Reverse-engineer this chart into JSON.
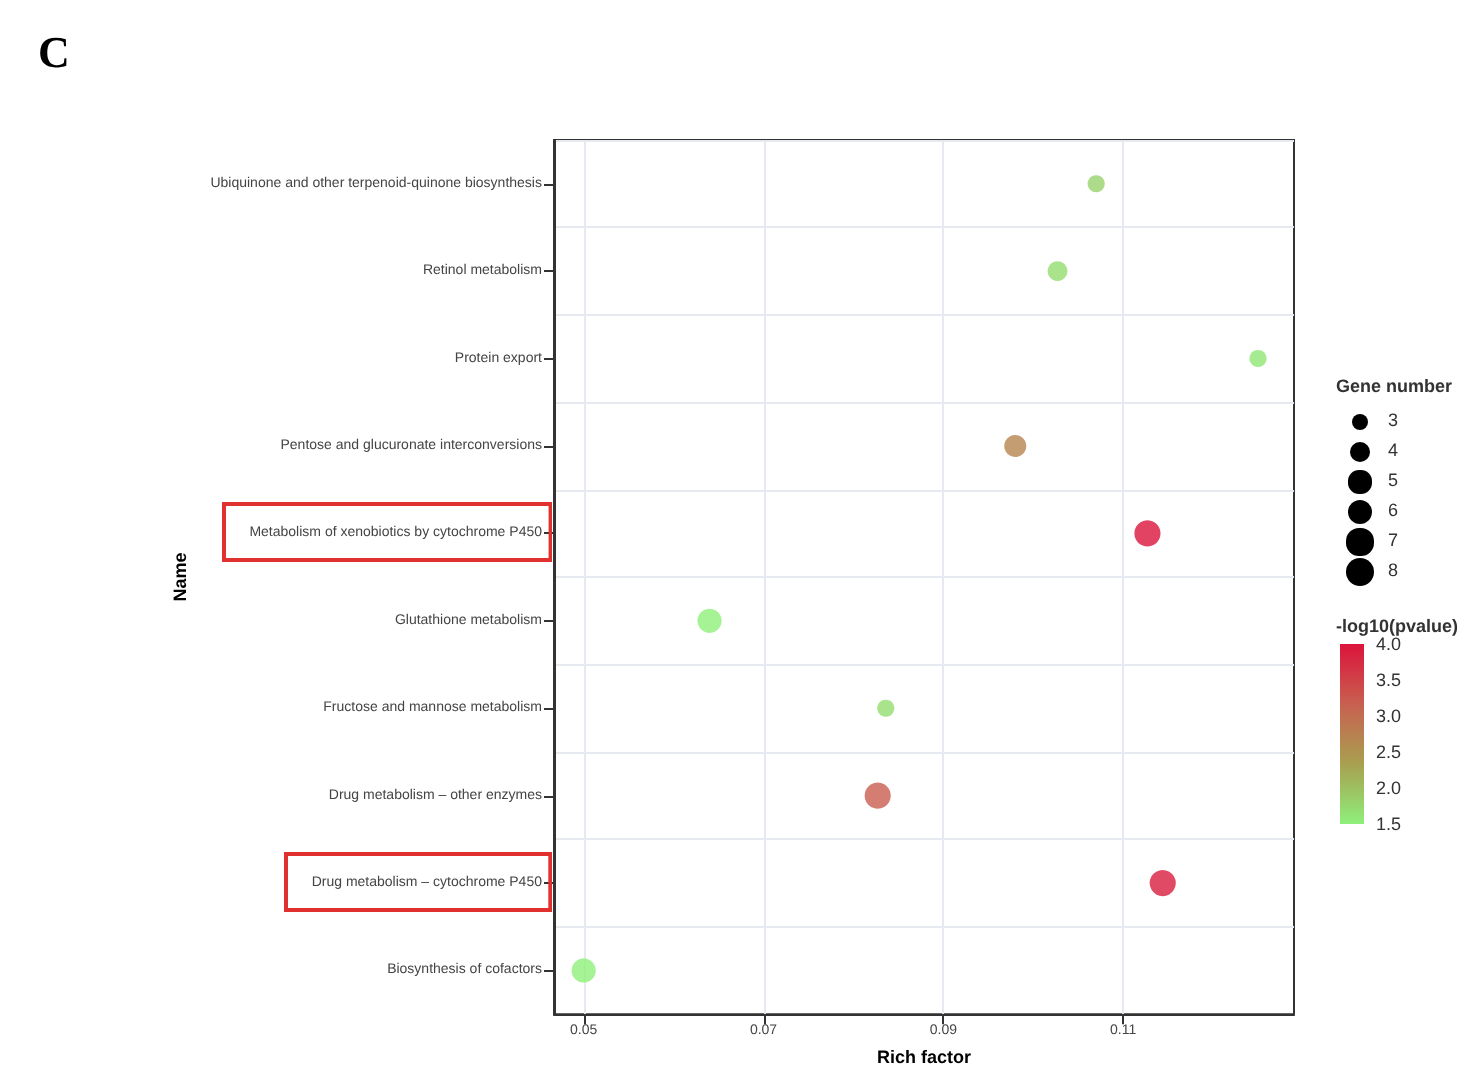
{
  "chart_data": {
    "type": "bubble",
    "title": "C",
    "xlabel": "Rich factor",
    "ylabel": "Name",
    "legend_title": "Gene number",
    "clabel": "-log10(pvalue)",
    "categories": [
      "Ubiquinone and other terpenoid-quinone biosynthesis",
      "Retinol metabolism",
      "Protein export",
      "Pentose and glucuronate interconversions",
      "Metabolism of xenobiotics by cytochrome P450",
      "Glutathione metabolism",
      "Fructose and mannose metabolism",
      "Drug metabolism – other enzymes",
      "Drug metabolism – cytochrome P450",
      "Biosynthesis of cofactors"
    ],
    "values": [
      0.107,
      0.1027,
      0.125,
      0.098,
      0.1127,
      0.064,
      0.0836,
      0.0827,
      0.1144,
      0.05
    ],
    "sizes": [
      3,
      4,
      3,
      5,
      7,
      6,
      3,
      7,
      7,
      6
    ],
    "cvalues": [
      1.8,
      1.7,
      1.6,
      2.7,
      4.0,
      1.5,
      1.7,
      3.2,
      3.9,
      1.5
    ],
    "size_legend": [
      3,
      4,
      5,
      6,
      7,
      8
    ],
    "clim": [
      1.5,
      4.0
    ],
    "cticks": [
      {
        "value": 4,
        "label": "4.0"
      },
      3.5,
      {
        "value": 3,
        "label": "3.0"
      },
      2.5,
      {
        "value": 2,
        "label": "2.0"
      },
      1.5
    ],
    "xlim": [
      0.0467,
      0.129
    ],
    "xticks": [
      0.05,
      0.07,
      0.09,
      0.11
    ],
    "grid": true,
    "orientation": "horizontal"
  }
}
